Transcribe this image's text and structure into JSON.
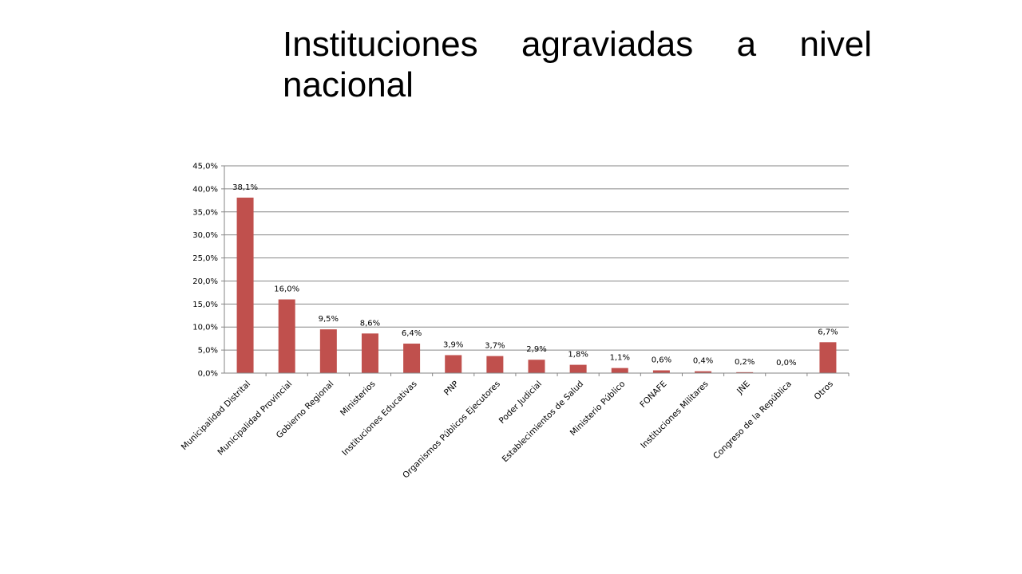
{
  "slide": {
    "title": "Instituciones agraviadas a nivel nacional"
  },
  "chart_data": {
    "type": "bar",
    "title": "",
    "xlabel": "",
    "ylabel": "",
    "ylim": [
      0,
      45
    ],
    "y_ticks": [
      "0,0%",
      "5,0%",
      "10,0%",
      "15,0%",
      "20,0%",
      "25,0%",
      "30,0%",
      "35,0%",
      "40,0%",
      "45,0%"
    ],
    "y_tick_values": [
      0,
      5,
      10,
      15,
      20,
      25,
      30,
      35,
      40,
      45
    ],
    "grid": true,
    "legend": "none",
    "bar_color": "#C0504D",
    "categories": [
      "Municipalidad Distrital",
      "Municipalidad Provincial",
      "Gobierno Regional",
      "Ministerios",
      "Instituciones Educativas",
      "PNP",
      "Organismos Públicos Ejecutores",
      "Poder Judicial",
      "Establecimientos de Salud",
      "Ministerio Público",
      "FONAFE",
      "Instituciones Militares",
      "JNE",
      "Congreso de la República",
      "Otros"
    ],
    "values": [
      38.1,
      16.0,
      9.5,
      8.6,
      6.4,
      3.9,
      3.7,
      2.9,
      1.8,
      1.1,
      0.6,
      0.4,
      0.2,
      0.0,
      6.7
    ],
    "data_labels": [
      "38,1%",
      "16,0%",
      "9,5%",
      "8,6%",
      "6,4%",
      "3,9%",
      "3,7%",
      "2,9%",
      "1,8%",
      "1,1%",
      "0,6%",
      "0,4%",
      "0,2%",
      "0,0%",
      "6,7%"
    ]
  }
}
